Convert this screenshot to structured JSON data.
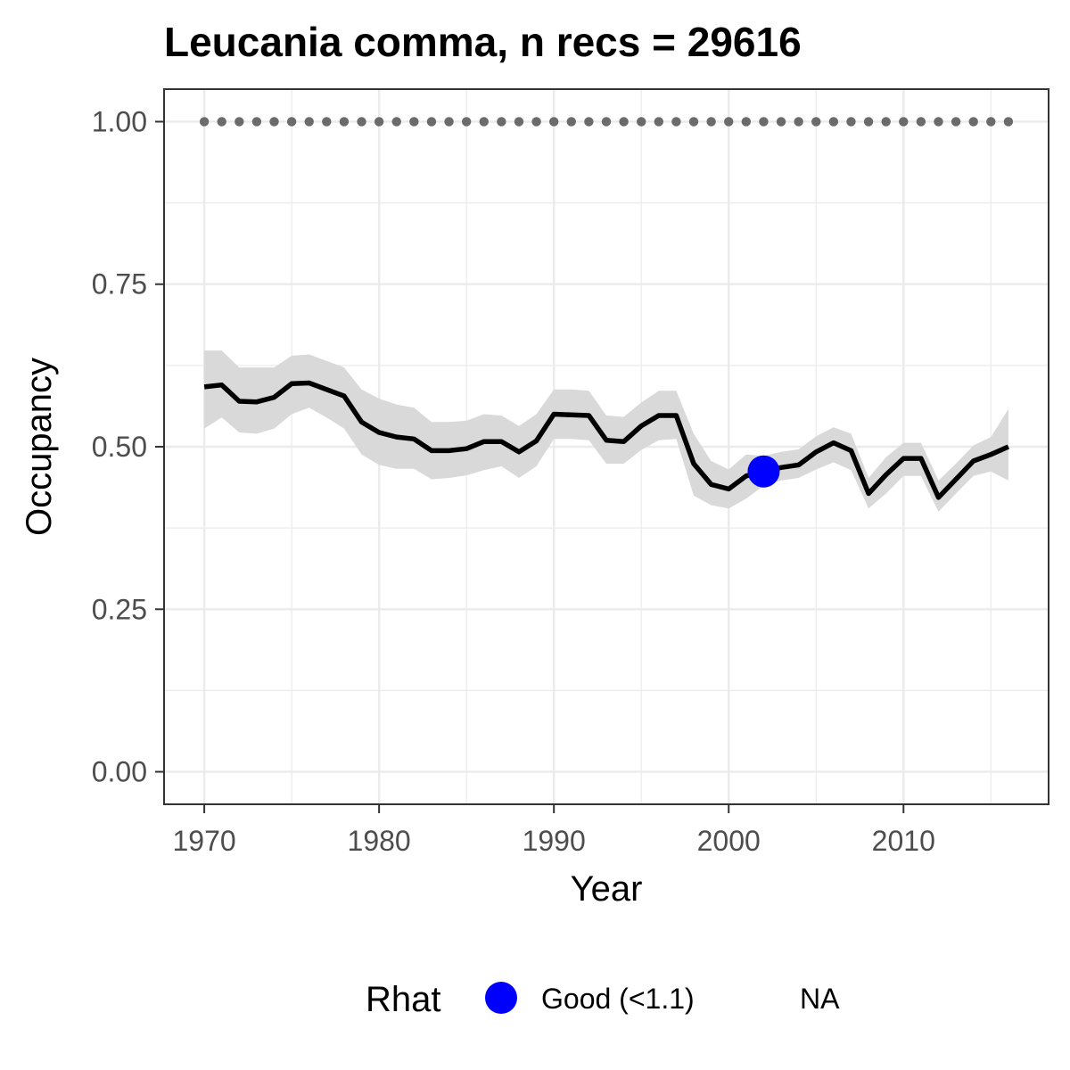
{
  "chart_data": {
    "type": "line",
    "title": "Leucania comma, n recs = 29616",
    "xlabel": "Year",
    "ylabel": "Occupancy",
    "xlim": [
      1967.7,
      2018.3
    ],
    "ylim": [
      -0.05,
      1.05
    ],
    "x_ticks": [
      1970,
      1980,
      1990,
      2000,
      2010
    ],
    "y_ticks": [
      0,
      0.25,
      0.5,
      0.75,
      1
    ],
    "x_tick_labels": [
      "1970",
      "1980",
      "1990",
      "2000",
      "2010"
    ],
    "y_tick_labels": [
      "0.00",
      "0.25",
      "0.50",
      "0.75",
      "1.00"
    ],
    "grid": true,
    "legend": {
      "title": "Rhat",
      "placement": "bottom",
      "entries": [
        {
          "label": "Good (<1.1)",
          "color": "#0000ff",
          "marker": "circle"
        },
        {
          "label": "NA",
          "color": "",
          "marker": "none"
        }
      ]
    },
    "colors": {
      "line": "#000000",
      "ribbon": "#d9d9d9",
      "reference_dots": "#6b6b6b",
      "rhat_good": "#0000ff",
      "grid": "#ebebeb",
      "panel_border": "#333333"
    },
    "series": [
      {
        "x": [
          1970,
          1971,
          1972,
          1973,
          1974,
          1975,
          1976,
          1977,
          1978,
          1979,
          1980,
          1981,
          1982,
          1983,
          1984,
          1985,
          1986,
          1987,
          1988,
          1989,
          1990,
          1991,
          1992,
          1993,
          1994,
          1995,
          1996,
          1997,
          1998,
          1999,
          2000,
          2001,
          2002,
          2003,
          2004,
          2005,
          2006,
          2007,
          2008,
          2009,
          2010,
          2011,
          2012,
          2013,
          2014,
          2015,
          2016
        ],
        "y": [
          0.592,
          0.595,
          0.57,
          0.569,
          0.576,
          0.597,
          0.598,
          0.588,
          0.578,
          0.538,
          0.522,
          0.515,
          0.512,
          0.494,
          0.494,
          0.497,
          0.508,
          0.508,
          0.492,
          0.509,
          0.55,
          0.549,
          0.548,
          0.51,
          0.508,
          0.532,
          0.548,
          0.548,
          0.474,
          0.442,
          0.435,
          0.455,
          0.462,
          0.468,
          0.472,
          0.492,
          0.506,
          0.494,
          0.428,
          0.457,
          0.482,
          0.482,
          0.422,
          0.45,
          0.478,
          0.488,
          0.5
        ],
        "lower": [
          0.528,
          0.545,
          0.522,
          0.52,
          0.528,
          0.55,
          0.56,
          0.545,
          0.528,
          0.488,
          0.472,
          0.466,
          0.466,
          0.45,
          0.452,
          0.456,
          0.464,
          0.47,
          0.452,
          0.47,
          0.512,
          0.512,
          0.51,
          0.474,
          0.474,
          0.495,
          0.51,
          0.512,
          0.425,
          0.41,
          0.405,
          0.42,
          0.44,
          0.448,
          0.452,
          0.465,
          0.476,
          0.464,
          0.405,
          0.428,
          0.455,
          0.455,
          0.4,
          0.428,
          0.455,
          0.462,
          0.448
        ],
        "upper": [
          0.648,
          0.648,
          0.622,
          0.622,
          0.622,
          0.64,
          0.642,
          0.632,
          0.622,
          0.588,
          0.574,
          0.565,
          0.56,
          0.538,
          0.538,
          0.54,
          0.55,
          0.548,
          0.532,
          0.55,
          0.588,
          0.588,
          0.586,
          0.548,
          0.546,
          0.568,
          0.586,
          0.586,
          0.52,
          0.478,
          0.465,
          0.488,
          0.486,
          0.492,
          0.496,
          0.516,
          0.53,
          0.52,
          0.452,
          0.484,
          0.506,
          0.506,
          0.448,
          0.474,
          0.502,
          0.515,
          0.558
        ]
      }
    ],
    "reference_points": {
      "x": [
        1970,
        1971,
        1972,
        1973,
        1974,
        1975,
        1976,
        1977,
        1978,
        1979,
        1980,
        1981,
        1982,
        1983,
        1984,
        1985,
        1986,
        1987,
        1988,
        1989,
        1990,
        1991,
        1992,
        1993,
        1994,
        1995,
        1996,
        1997,
        1998,
        1999,
        2000,
        2001,
        2002,
        2003,
        2004,
        2005,
        2006,
        2007,
        2008,
        2009,
        2010,
        2011,
        2012,
        2013,
        2014,
        2015,
        2016
      ],
      "y": 1.0
    },
    "rhat_points": [
      {
        "x": 2002,
        "y": 0.462,
        "category": "Good (<1.1)"
      }
    ]
  }
}
